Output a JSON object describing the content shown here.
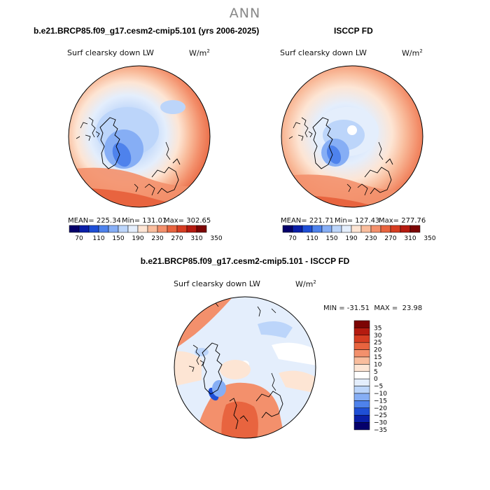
{
  "header": {
    "title": "ANN"
  },
  "left_panel": {
    "case_title": "b.e21.BRCP85.f09_g17.cesm2-cmip5.101 (yrs 2006-2025)",
    "variable": "Surf clearsky down LW",
    "units": "W/m",
    "units_sup": "2",
    "stats": {
      "mean": "MEAN= 225.34",
      "min": "Min= 131.01",
      "max": "Max= 302.65"
    }
  },
  "right_panel": {
    "case_title": "ISCCP FD",
    "variable": "Surf clearsky down LW",
    "units": "W/m",
    "units_sup": "2",
    "stats": {
      "mean": "MEAN= 221.71",
      "min": "Min= 127.43",
      "max": "Max= 277.76"
    }
  },
  "top_colorbar": {
    "labels": [
      "70",
      "110",
      "150",
      "190",
      "230",
      "270",
      "310",
      "350"
    ],
    "colors": [
      "#05006b",
      "#0a1fa8",
      "#1f4fd6",
      "#4e82ec",
      "#86aef5",
      "#bcd5fa",
      "#e4eefc",
      "#fde5d4",
      "#f9bd9d",
      "#f3906c",
      "#e8643f",
      "#d63d22",
      "#b51b10",
      "#7c0504"
    ]
  },
  "bottom_panel": {
    "case_title": "b.e21.BRCP85.f09_g17.cesm2-cmip5.101 - ISCCP FD",
    "variable": "Surf clearsky down LW",
    "units": "W/m",
    "units_sup": "2",
    "stats": "MIN = -31.51  MAX =  23.98"
  },
  "diff_colorbar": {
    "labels": [
      "35",
      "30",
      "25",
      "20",
      "15",
      "10",
      "5",
      "0",
      "−5",
      "−10",
      "−15",
      "−20",
      "−25",
      "−30",
      "−35"
    ],
    "colors": [
      "#7c0504",
      "#b51b10",
      "#d63d22",
      "#e8643f",
      "#f3906c",
      "#f9bd9d",
      "#fde5d4",
      "#ffffff",
      "#e4eefc",
      "#bcd5fa",
      "#86aef5",
      "#4e82ec",
      "#1f4fd6",
      "#0a1fa8",
      "#05006b"
    ]
  }
}
